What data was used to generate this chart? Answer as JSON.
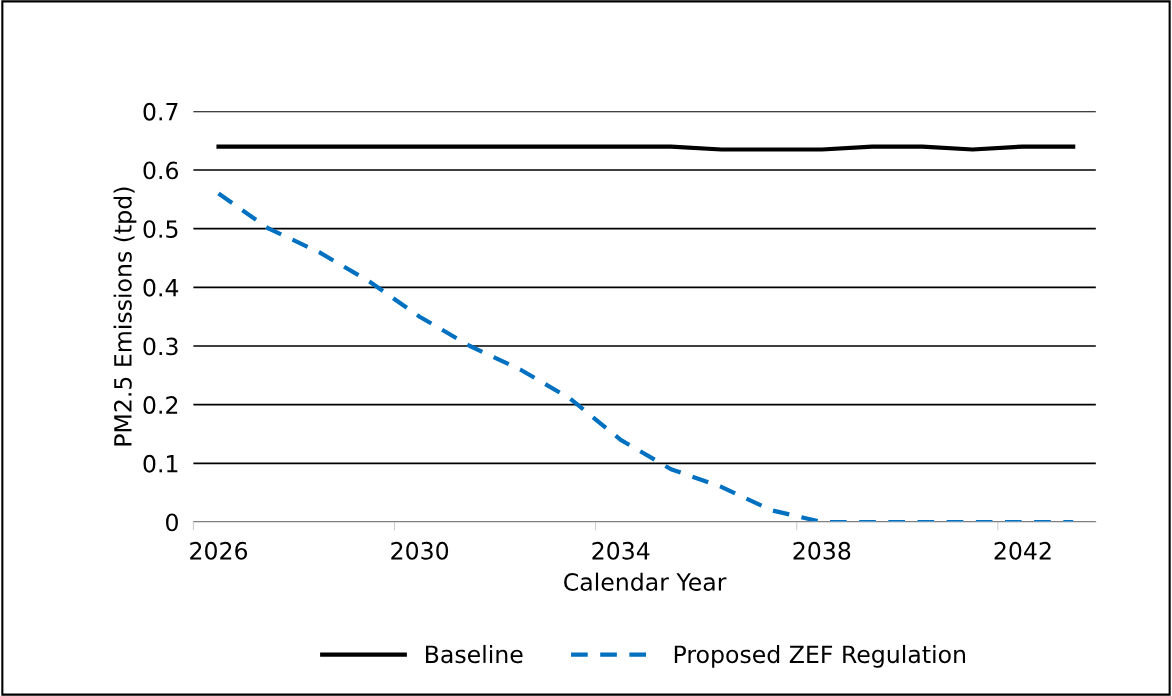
{
  "chart_data": {
    "type": "line",
    "xlabel": "Calendar Year",
    "ylabel": "PM2.5 Emissions (tpd)",
    "categories": [
      "2026",
      null,
      null,
      null,
      "2030",
      null,
      null,
      null,
      "2034",
      null,
      null,
      null,
      "2038",
      null,
      null,
      null,
      "2042",
      null
    ],
    "series": [
      {
        "name": "Baseline",
        "color": "#000000",
        "line_style": "solid",
        "values": [
          0.64,
          0.64,
          0.64,
          0.64,
          0.64,
          0.64,
          0.64,
          0.64,
          0.64,
          0.64,
          0.635,
          0.635,
          0.635,
          0.64,
          0.64,
          0.635,
          0.64,
          0.64
        ]
      },
      {
        "name": "Proposed ZEF Regulation",
        "color": "#0070c0",
        "line_style": "dashed",
        "values": [
          0.56,
          0.5,
          0.46,
          0.41,
          0.35,
          0.3,
          0.26,
          0.21,
          0.14,
          0.09,
          0.06,
          0.02,
          0,
          0,
          0,
          0,
          0,
          0
        ]
      }
    ],
    "ylim": [
      0,
      0.7
    ],
    "yticks": [
      0,
      0.1,
      0.2,
      0.3,
      0.4,
      0.5,
      0.6,
      0.7
    ],
    "grid": "y",
    "legend": "bottom",
    "marker": "none"
  }
}
